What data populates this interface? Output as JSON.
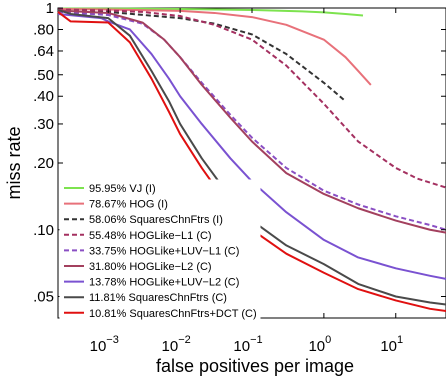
{
  "chart_data": {
    "type": "line",
    "xlabel": "false positives per image",
    "ylabel": "miss rate",
    "x_scale": "log",
    "y_scale": "log",
    "xlim": [
      0.0002,
      50
    ],
    "ylim": [
      0.04,
      1
    ],
    "x_ticks": [
      {
        "value": 0.001,
        "base": "10",
        "exp": "−3"
      },
      {
        "value": 0.01,
        "base": "10",
        "exp": "−2"
      },
      {
        "value": 0.1,
        "base": "10",
        "exp": "−1"
      },
      {
        "value": 1,
        "base": "10",
        "exp": "0"
      },
      {
        "value": 10,
        "base": "10",
        "exp": "1"
      }
    ],
    "y_ticks": [
      {
        "value": 1,
        "label": "1"
      },
      {
        "value": 0.8,
        "label": ".80"
      },
      {
        "value": 0.64,
        "label": ".64"
      },
      {
        "value": 0.5,
        "label": ".50"
      },
      {
        "value": 0.4,
        "label": ".40"
      },
      {
        "value": 0.3,
        "label": ".30"
      },
      {
        "value": 0.2,
        "label": ".20"
      },
      {
        "value": 0.1,
        "label": ".10"
      },
      {
        "value": 0.05,
        "label": ".05"
      }
    ],
    "grid": false,
    "legend_position": "bottom-left",
    "series": [
      {
        "name": "95.95% VJ (I)",
        "color": "#7de34f",
        "dash": "solid",
        "points": [
          [
            0.0002,
            0.995
          ],
          [
            0.001,
            0.994
          ],
          [
            0.01,
            0.99
          ],
          [
            0.1,
            0.98
          ],
          [
            0.5,
            0.965
          ],
          [
            1,
            0.955
          ],
          [
            2,
            0.94
          ],
          [
            3.5,
            0.925
          ]
        ]
      },
      {
        "name": "78.67% HOG (I)",
        "color": "#e8717a",
        "dash": "solid",
        "points": [
          [
            0.0002,
            0.99
          ],
          [
            0.001,
            0.985
          ],
          [
            0.01,
            0.97
          ],
          [
            0.03,
            0.95
          ],
          [
            0.1,
            0.91
          ],
          [
            0.3,
            0.84
          ],
          [
            1,
            0.72
          ],
          [
            2,
            0.6
          ],
          [
            3,
            0.52
          ],
          [
            4.5,
            0.45
          ]
        ]
      },
      {
        "name": "58.06% SquaresChnFtrs (I)",
        "color": "#333333",
        "dash": "dashed",
        "points": [
          [
            0.0002,
            0.97
          ],
          [
            0.001,
            0.96
          ],
          [
            0.01,
            0.9
          ],
          [
            0.03,
            0.85
          ],
          [
            0.1,
            0.76
          ],
          [
            0.3,
            0.62
          ],
          [
            1,
            0.46
          ],
          [
            2,
            0.38
          ]
        ]
      },
      {
        "name": "55.48% HOGLike−L1 (C)",
        "color": "#a43060",
        "dash": "dashed",
        "points": [
          [
            0.0002,
            0.985
          ],
          [
            0.001,
            0.975
          ],
          [
            0.003,
            0.96
          ],
          [
            0.01,
            0.92
          ],
          [
            0.03,
            0.84
          ],
          [
            0.1,
            0.72
          ],
          [
            0.3,
            0.55
          ],
          [
            1,
            0.37
          ],
          [
            3,
            0.25
          ],
          [
            10,
            0.19
          ],
          [
            20,
            0.17
          ],
          [
            50,
            0.155
          ]
        ]
      },
      {
        "name": "33.75% HOGLike+LUV−L1 (C)",
        "color": "#8a4fc4",
        "dash": "dashed",
        "points": [
          [
            0.0002,
            0.96
          ],
          [
            0.001,
            0.93
          ],
          [
            0.003,
            0.85
          ],
          [
            0.006,
            0.72
          ],
          [
            0.01,
            0.6
          ],
          [
            0.02,
            0.46
          ],
          [
            0.05,
            0.33
          ],
          [
            0.1,
            0.26
          ],
          [
            0.3,
            0.19
          ],
          [
            1,
            0.15
          ],
          [
            3,
            0.13
          ],
          [
            10,
            0.115
          ],
          [
            30,
            0.105
          ],
          [
            50,
            0.1
          ]
        ]
      },
      {
        "name": "31.80% HOGLike−L2 (C)",
        "color": "#a3405e",
        "dash": "solid",
        "points": [
          [
            0.0002,
            0.975
          ],
          [
            0.001,
            0.95
          ],
          [
            0.003,
            0.86
          ],
          [
            0.006,
            0.72
          ],
          [
            0.01,
            0.6
          ],
          [
            0.02,
            0.45
          ],
          [
            0.05,
            0.32
          ],
          [
            0.1,
            0.25
          ],
          [
            0.3,
            0.18
          ],
          [
            1,
            0.145
          ],
          [
            3,
            0.125
          ],
          [
            10,
            0.11
          ],
          [
            30,
            0.1
          ],
          [
            50,
            0.097
          ]
        ]
      },
      {
        "name": "13.78% HOGLike+LUV−L2 (C)",
        "color": "#7a52d1",
        "dash": "solid",
        "points": [
          [
            0.0002,
            0.94
          ],
          [
            0.0008,
            0.9
          ],
          [
            0.001,
            0.87
          ],
          [
            0.002,
            0.8
          ],
          [
            0.004,
            0.62
          ],
          [
            0.007,
            0.48
          ],
          [
            0.01,
            0.4
          ],
          [
            0.02,
            0.3
          ],
          [
            0.05,
            0.21
          ],
          [
            0.1,
            0.165
          ],
          [
            0.3,
            0.12
          ],
          [
            1,
            0.09
          ],
          [
            3,
            0.075
          ],
          [
            10,
            0.067
          ],
          [
            30,
            0.062
          ],
          [
            50,
            0.06
          ]
        ]
      },
      {
        "name": "11.81% SquaresChnFtrs (C)",
        "color": "#4a4a4a",
        "dash": "solid",
        "points": [
          [
            0.0002,
            0.98
          ],
          [
            0.0003,
            0.94
          ],
          [
            0.001,
            0.9
          ],
          [
            0.002,
            0.75
          ],
          [
            0.004,
            0.52
          ],
          [
            0.007,
            0.38
          ],
          [
            0.01,
            0.3
          ],
          [
            0.02,
            0.21
          ],
          [
            0.05,
            0.14
          ],
          [
            0.1,
            0.11
          ],
          [
            0.3,
            0.085
          ],
          [
            1,
            0.07
          ],
          [
            3,
            0.057
          ],
          [
            10,
            0.05
          ],
          [
            30,
            0.047
          ],
          [
            50,
            0.046
          ]
        ]
      },
      {
        "name": "10.81% SquaresChnFtrs+DCT (C)",
        "color": "#e01010",
        "dash": "solid",
        "points": [
          [
            0.0002,
            0.96
          ],
          [
            0.0003,
            0.87
          ],
          [
            0.001,
            0.86
          ],
          [
            0.002,
            0.7
          ],
          [
            0.004,
            0.48
          ],
          [
            0.007,
            0.34
          ],
          [
            0.01,
            0.27
          ],
          [
            0.02,
            0.19
          ],
          [
            0.05,
            0.125
          ],
          [
            0.1,
            0.1
          ],
          [
            0.3,
            0.078
          ],
          [
            1,
            0.064
          ],
          [
            3,
            0.054
          ],
          [
            10,
            0.048
          ],
          [
            30,
            0.044
          ],
          [
            50,
            0.043
          ]
        ]
      }
    ]
  }
}
